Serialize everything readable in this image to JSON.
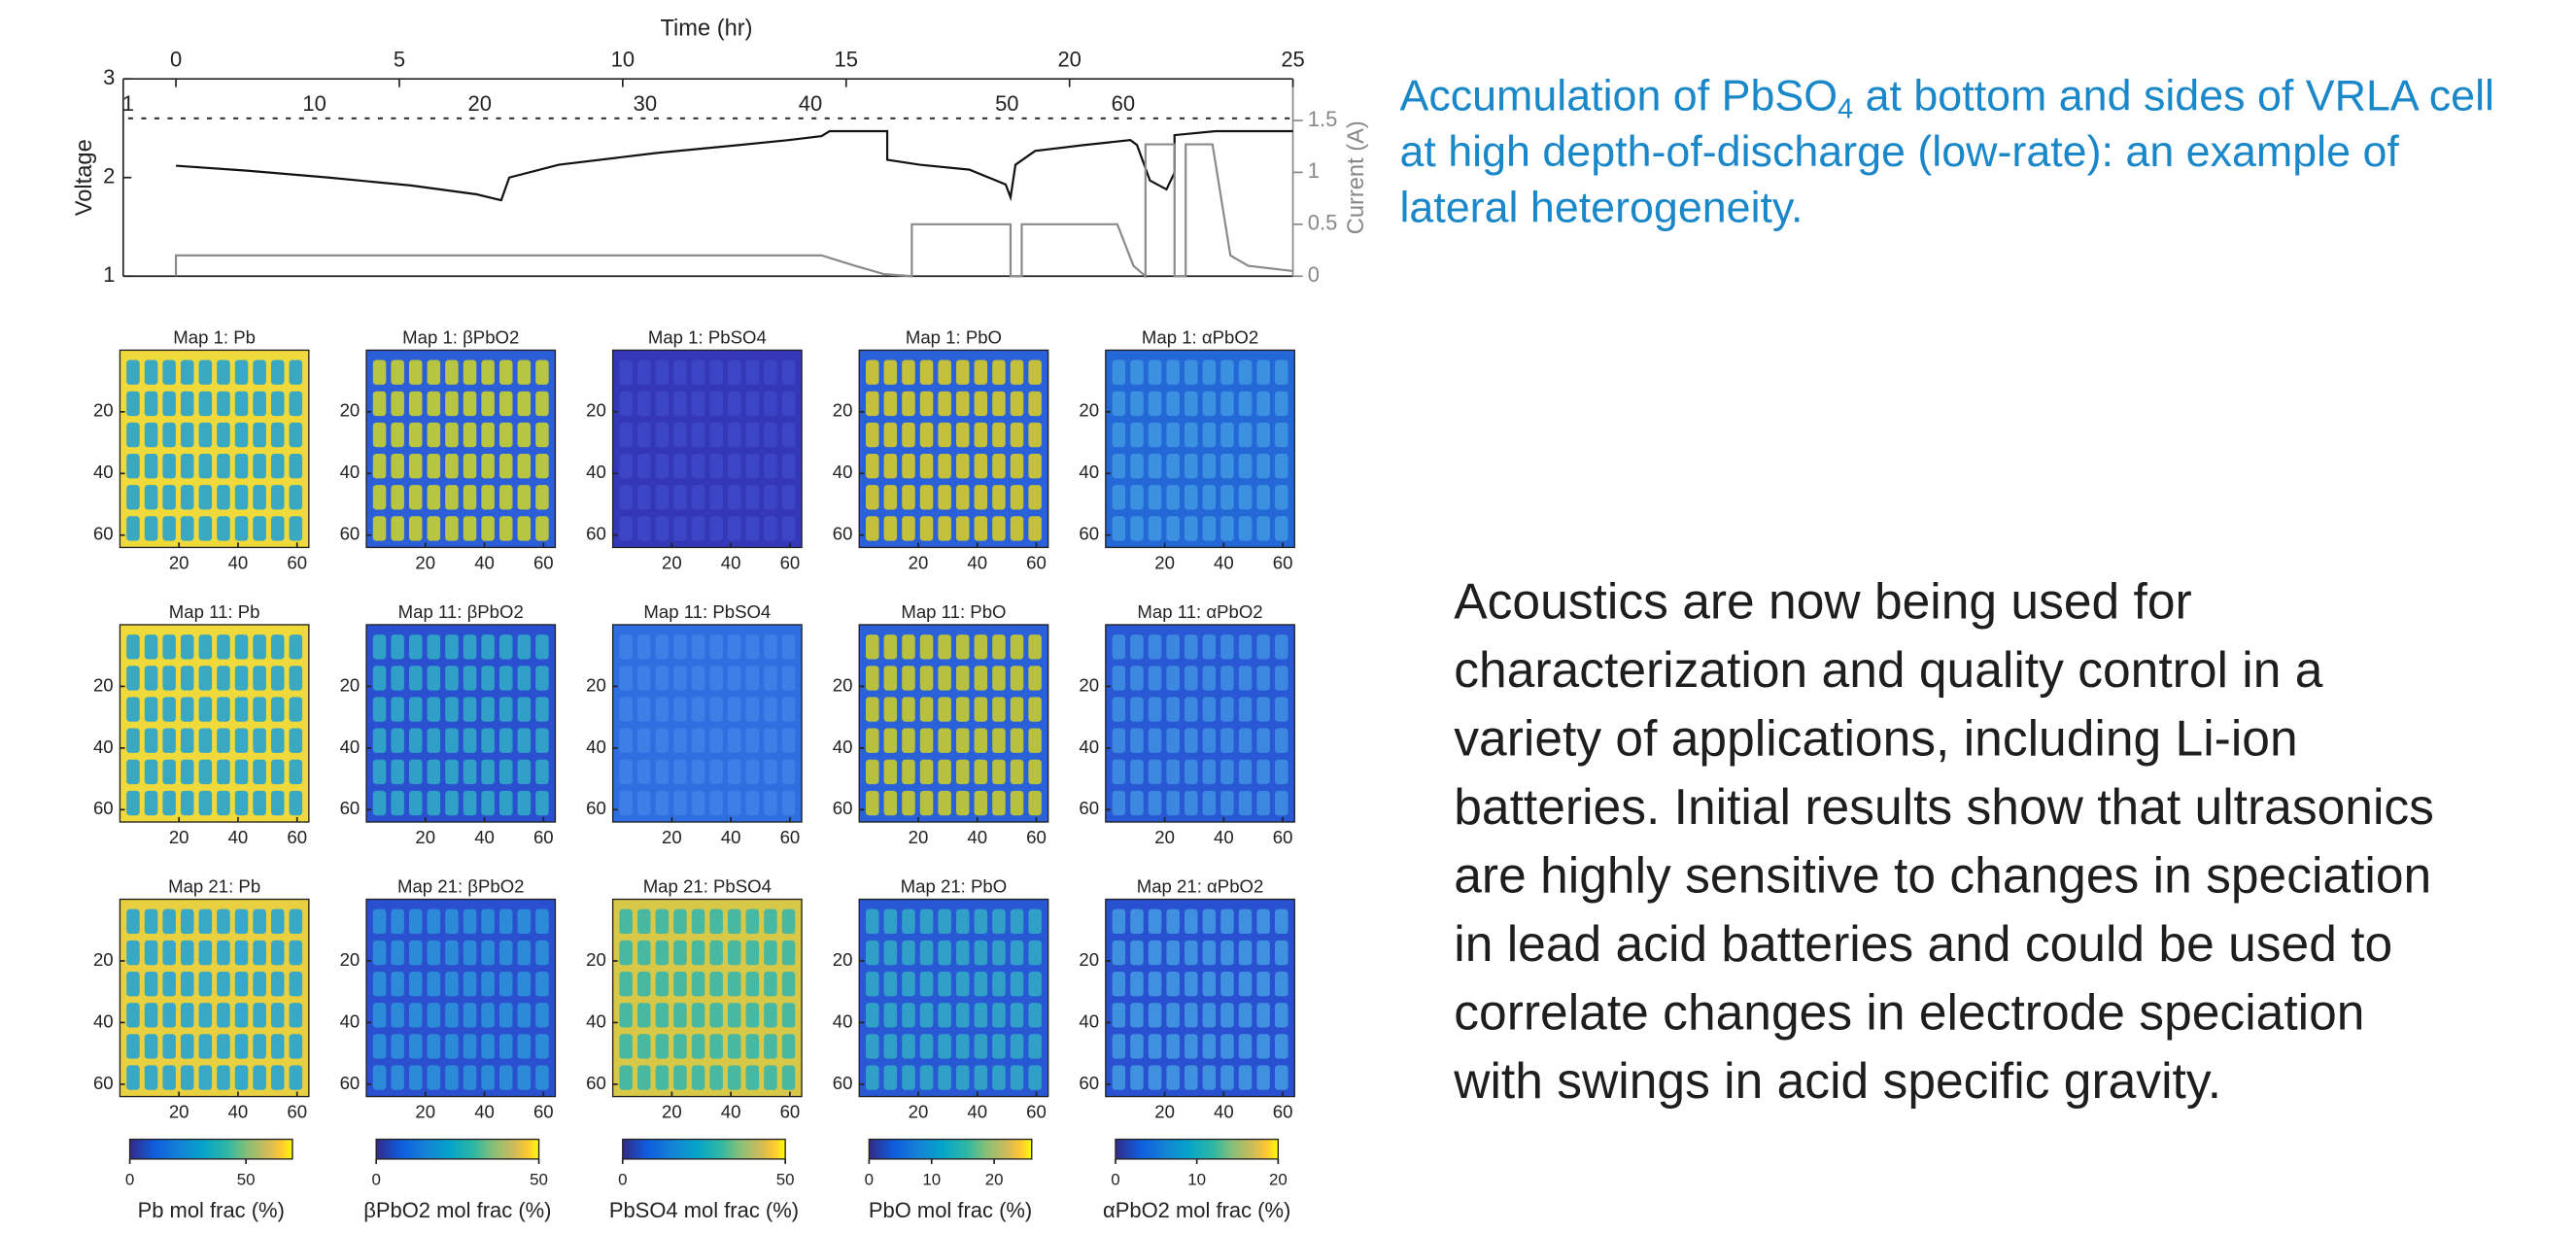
{
  "chart_data": [
    {
      "type": "line",
      "x_label": "Time (hr)",
      "y_label": "Voltage",
      "y2_label": "Current (A)",
      "xlim": [
        -1.18,
        25
      ],
      "xticks": [
        0,
        5,
        10,
        15,
        20,
        25
      ],
      "ylim": [
        1,
        3
      ],
      "yticks": [
        1,
        2,
        3
      ],
      "y2lim": [
        0,
        1.9
      ],
      "y2ticks": [
        0,
        0.5,
        1,
        1.5
      ],
      "map_ticks": [
        {
          "value": -1.07,
          "label": "1"
        },
        {
          "value": 3.1,
          "label": "10"
        },
        {
          "value": 6.8,
          "label": "20"
        },
        {
          "value": 10.5,
          "label": "30"
        },
        {
          "value": 14.2,
          "label": "40"
        },
        {
          "value": 18.6,
          "label": "50"
        },
        {
          "value": 21.2,
          "label": "60"
        }
      ],
      "series": [
        {
          "color": "#111111",
          "x": [
            0,
            1.58,
            3.42,
            5.26,
            6.73,
            7.28,
            7.46,
            8.57,
            10.77,
            12.61,
            13.71,
            14.45,
            14.63,
            15.0,
            15.92,
            15.92,
            16.65,
            17.76,
            18.57,
            18.68,
            18.79,
            19.23,
            20.33,
            21.36,
            21.51,
            21.8,
            22.17,
            22.35,
            22.35,
            23.27,
            25
          ],
          "values": [
            2.12,
            2.07,
            2.0,
            1.92,
            1.83,
            1.77,
            2.0,
            2.13,
            2.25,
            2.33,
            2.38,
            2.42,
            2.47,
            2.47,
            2.47,
            2.18,
            2.13,
            2.08,
            1.93,
            1.8,
            2.13,
            2.27,
            2.33,
            2.38,
            2.33,
            1.97,
            1.88,
            2.05,
            2.43,
            2.47,
            2.47
          ]
        },
        {
          "color": "#8a8a8a",
          "axis": "y2",
          "x": [
            0,
            0,
            14.45,
            15.2,
            15.85,
            16.47,
            16.47,
            18.68,
            18.68,
            18.93,
            18.93,
            21.07,
            21.43,
            21.7,
            21.7,
            22.35,
            22.35,
            22.6,
            22.6,
            23.2,
            23.45,
            23.6,
            24,
            25
          ],
          "values": [
            0,
            0.2,
            0.2,
            0.1,
            0.02,
            0,
            0.5,
            0.5,
            0,
            0,
            0.5,
            0.5,
            0.1,
            0,
            1.27,
            1.27,
            0,
            0,
            1.27,
            1.27,
            0.6,
            0.2,
            0.1,
            0.05
          ]
        }
      ]
    },
    {
      "type": "heatmap_grid",
      "xlim": [
        0,
        64
      ],
      "ylim": [
        0,
        64
      ],
      "xticks": [
        20,
        40,
        60
      ],
      "yticks": [
        20,
        40,
        60
      ],
      "titles": [
        [
          "Map 1: Pb",
          "Map 1: βPbO2",
          "Map 1: PbSO4",
          "Map 1: PbO",
          "Map 1: αPbO2"
        ],
        [
          "Map 11: Pb",
          "Map 11: βPbO2",
          "Map 11: PbSO4",
          "Map 11: PbO",
          "Map 11: αPbO2"
        ],
        [
          "Map 21: Pb",
          "Map 21: βPbO2",
          "Map 21: PbSO4",
          "Map 21: PbO",
          "Map 21: αPbO2"
        ]
      ],
      "colorbars": [
        {
          "label": "Pb mol frac (%)",
          "lim": [
            0,
            70
          ],
          "ticks": [
            0,
            50
          ]
        },
        {
          "label": "βPbO2 mol frac (%)",
          "lim": [
            0,
            50
          ],
          "ticks": [
            0,
            50
          ]
        },
        {
          "label": "PbSO4 mol frac (%)",
          "lim": [
            0,
            50
          ],
          "ticks": [
            0,
            50
          ]
        },
        {
          "label": "PbO mol frac (%)",
          "lim": [
            0,
            26
          ],
          "ticks": [
            0,
            10,
            20
          ]
        },
        {
          "label": "αPbO2 mol frac (%)",
          "lim": [
            0,
            20
          ],
          "ticks": [
            0,
            10,
            20
          ]
        }
      ]
    }
  ],
  "heading": {
    "lines": [
      {
        "text": "Accumulation of PbSO",
        "sub": "4",
        "tail": " at bottom and sides of VRLA cell"
      },
      {
        "text": "at high depth-of-discharge (low-rate): an example of"
      },
      {
        "text": "lateral heterogeneity."
      }
    ]
  },
  "body": {
    "lines": [
      "Acoustics are now being used for",
      "characterization and quality control in a",
      "variety of applications, including Li-ion",
      "batteries. Initial results show that ultrasonics",
      "are highly sensitive to changes in speciation",
      "in lead acid batteries and could be used to",
      "correlate changes in electrode speciation",
      "with swings in acid specific gravity."
    ]
  }
}
